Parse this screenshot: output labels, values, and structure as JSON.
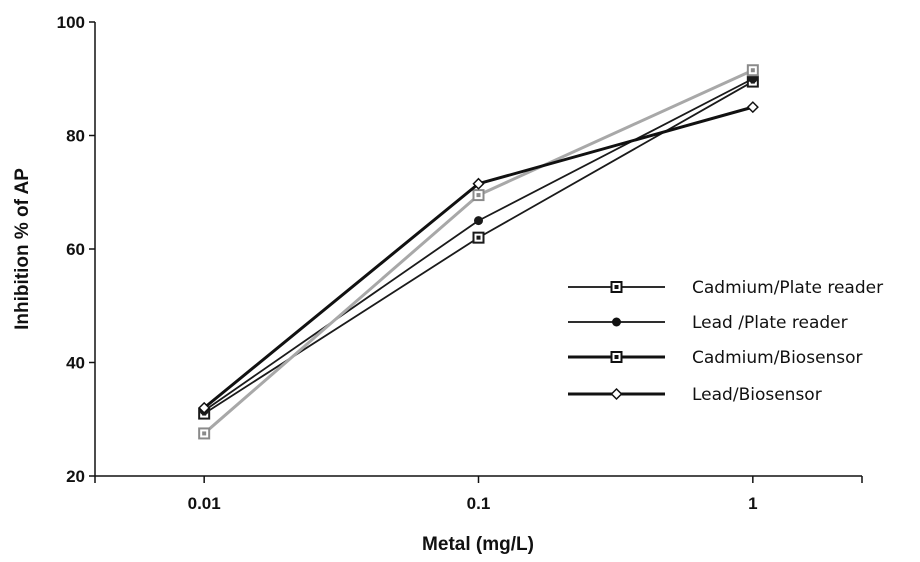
{
  "chart_data": {
    "type": "line",
    "title": "",
    "xlabel": "Metal (mg/L)",
    "ylabel": "Inhibition % of AP",
    "x_scale": "log",
    "x": [
      0.01,
      0.1,
      1
    ],
    "x_tick_labels": [
      "0.01",
      "0.1",
      "1"
    ],
    "xlim": [
      0.004,
      2.5
    ],
    "ylim": [
      20,
      100
    ],
    "y_ticks": [
      20,
      40,
      60,
      80,
      100
    ],
    "grid": false,
    "legend_position": "right",
    "series": [
      {
        "name": "Cadmium/Plate reader",
        "values": [
          31,
          62,
          89.5
        ],
        "color": "#1a1a1a",
        "marker": "open-square",
        "stroke": "thin"
      },
      {
        "name": "Lead /Plate reader",
        "values": [
          31.5,
          65,
          90
        ],
        "color": "#1a1a1a",
        "marker": "filled-circle",
        "stroke": "thin"
      },
      {
        "name": "Cadmium/Biosensor",
        "values": [
          27.5,
          69.5,
          91.5
        ],
        "color": "#a8a8a8",
        "marker": "open-square",
        "stroke": "thick"
      },
      {
        "name": "Lead/Biosensor",
        "values": [
          32,
          71.5,
          85
        ],
        "color": "#111111",
        "marker": "open-diamond",
        "stroke": "thick"
      }
    ]
  }
}
